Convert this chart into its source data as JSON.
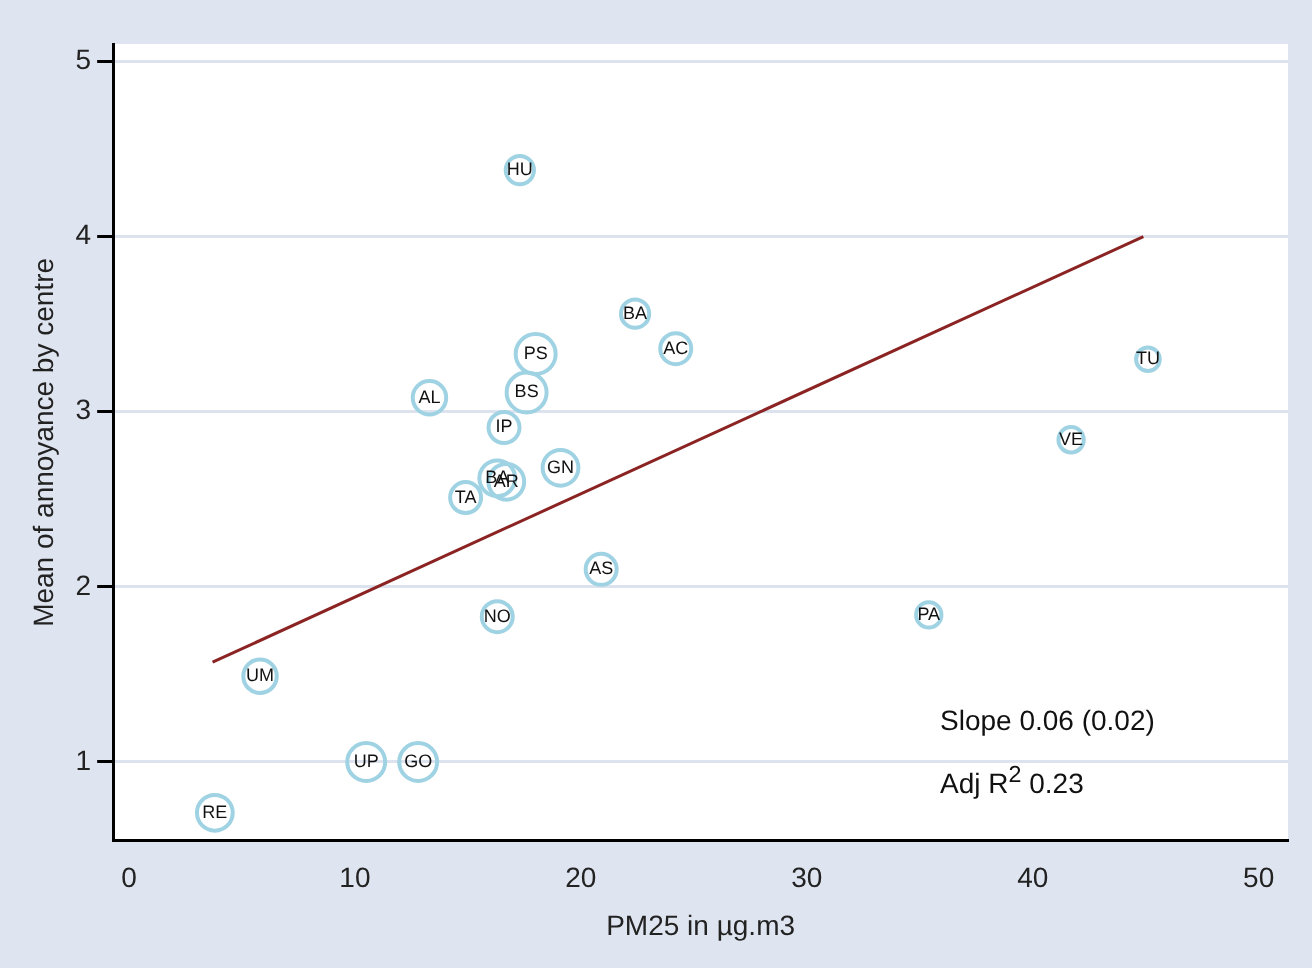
{
  "chart_data": {
    "type": "bubble",
    "xlabel": "PM25 in µg.m3",
    "ylabel": "Mean of annoyance by centre",
    "xlim": [
      -0.7,
      51.3
    ],
    "xticks": [
      0,
      10,
      20,
      30,
      40,
      50
    ],
    "ylim": [
      0.55,
      5.1
    ],
    "yticks": [
      1,
      2,
      3,
      4,
      5
    ],
    "grid": "y",
    "legend": false,
    "series": [
      {
        "color": "#9fd3e3",
        "x": [
          17.3,
          22.4,
          24.2,
          18.0,
          17.6,
          13.3,
          16.6,
          19.1,
          16.3,
          16.7,
          14.9,
          20.9,
          16.3,
          5.8,
          10.5,
          12.8,
          3.8,
          35.4,
          41.7,
          45.1
        ],
        "values": [
          4.38,
          3.56,
          3.36,
          3.33,
          3.11,
          3.08,
          2.91,
          2.68,
          2.62,
          2.6,
          2.51,
          2.1,
          1.83,
          1.49,
          1.0,
          1.0,
          0.71,
          1.84,
          2.84,
          3.3
        ],
        "sizes": [
          0.5,
          0.5,
          0.6,
          1,
          1,
          0.7,
          0.6,
          0.8,
          0.8,
          0.8,
          0.6,
          0.6,
          0.6,
          0.7,
          0.9,
          0.9,
          0.8,
          0.4,
          0.4,
          0.35
        ],
        "value_labels": [
          "HU",
          "BA",
          "AC",
          "PS",
          "BS",
          "AL",
          "IP",
          "GN",
          "BA",
          "AR",
          "TA",
          "AS",
          "NO",
          "UM",
          "UP",
          "GO",
          "RE",
          "PA",
          "VE",
          "TU"
        ]
      },
      {
        "type": "line",
        "color": "#8b2323",
        "x": [
          3.7,
          44.9
        ],
        "values": [
          1.57,
          4.0
        ]
      }
    ],
    "annotations": [
      "Slope 0.06 (0.02)",
      "Adj R$^{2}$ 0.23"
    ]
  }
}
